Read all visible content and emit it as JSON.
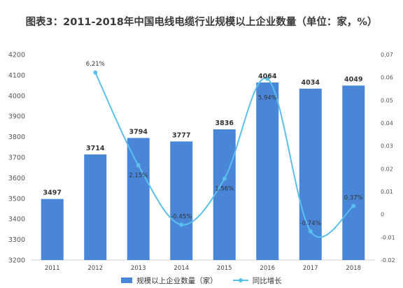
{
  "chart_data": {
    "type": "bar",
    "title": "图表3：2011-2018年中国电线电缆行业规模以上企业数量（单位：家，%）",
    "categories": [
      "2011",
      "2012",
      "2013",
      "2014",
      "2015",
      "2016",
      "2017",
      "2018"
    ],
    "series": [
      {
        "name": "规模以上企业数量（家）",
        "type": "bar",
        "axis": "left",
        "color": "#4a86d8",
        "values": [
          3497,
          3714,
          3794,
          3777,
          3836,
          4064,
          4034,
          4049
        ],
        "labels": [
          "3497",
          "3714",
          "3794",
          "3777",
          "3836",
          "4064",
          "4034",
          "4049"
        ]
      },
      {
        "name": "同比增长",
        "type": "line",
        "axis": "right",
        "color": "#5bc0eb",
        "values": [
          null,
          0.0621,
          0.0215,
          -0.0045,
          0.0156,
          0.0594,
          -0.0074,
          0.0037
        ],
        "labels": [
          "",
          "6.21%",
          "2.15%",
          "-0.45%",
          "1.56%",
          "5.94%",
          "-0.74%",
          "0.37%"
        ]
      }
    ],
    "ylim": [
      3200,
      4200
    ],
    "yticks": [
      "3200",
      "3300",
      "3400",
      "3500",
      "3600",
      "3700",
      "3800",
      "3900",
      "4000",
      "4100",
      "4200"
    ],
    "y2lim": [
      -0.02,
      0.07
    ],
    "y2ticks": [
      "-0.02",
      "-0.01",
      "0",
      "0.01",
      "0.02",
      "0.03",
      "0.04",
      "0.05",
      "0.06",
      "0.07"
    ],
    "legend_position": "bottom",
    "grid": false
  }
}
